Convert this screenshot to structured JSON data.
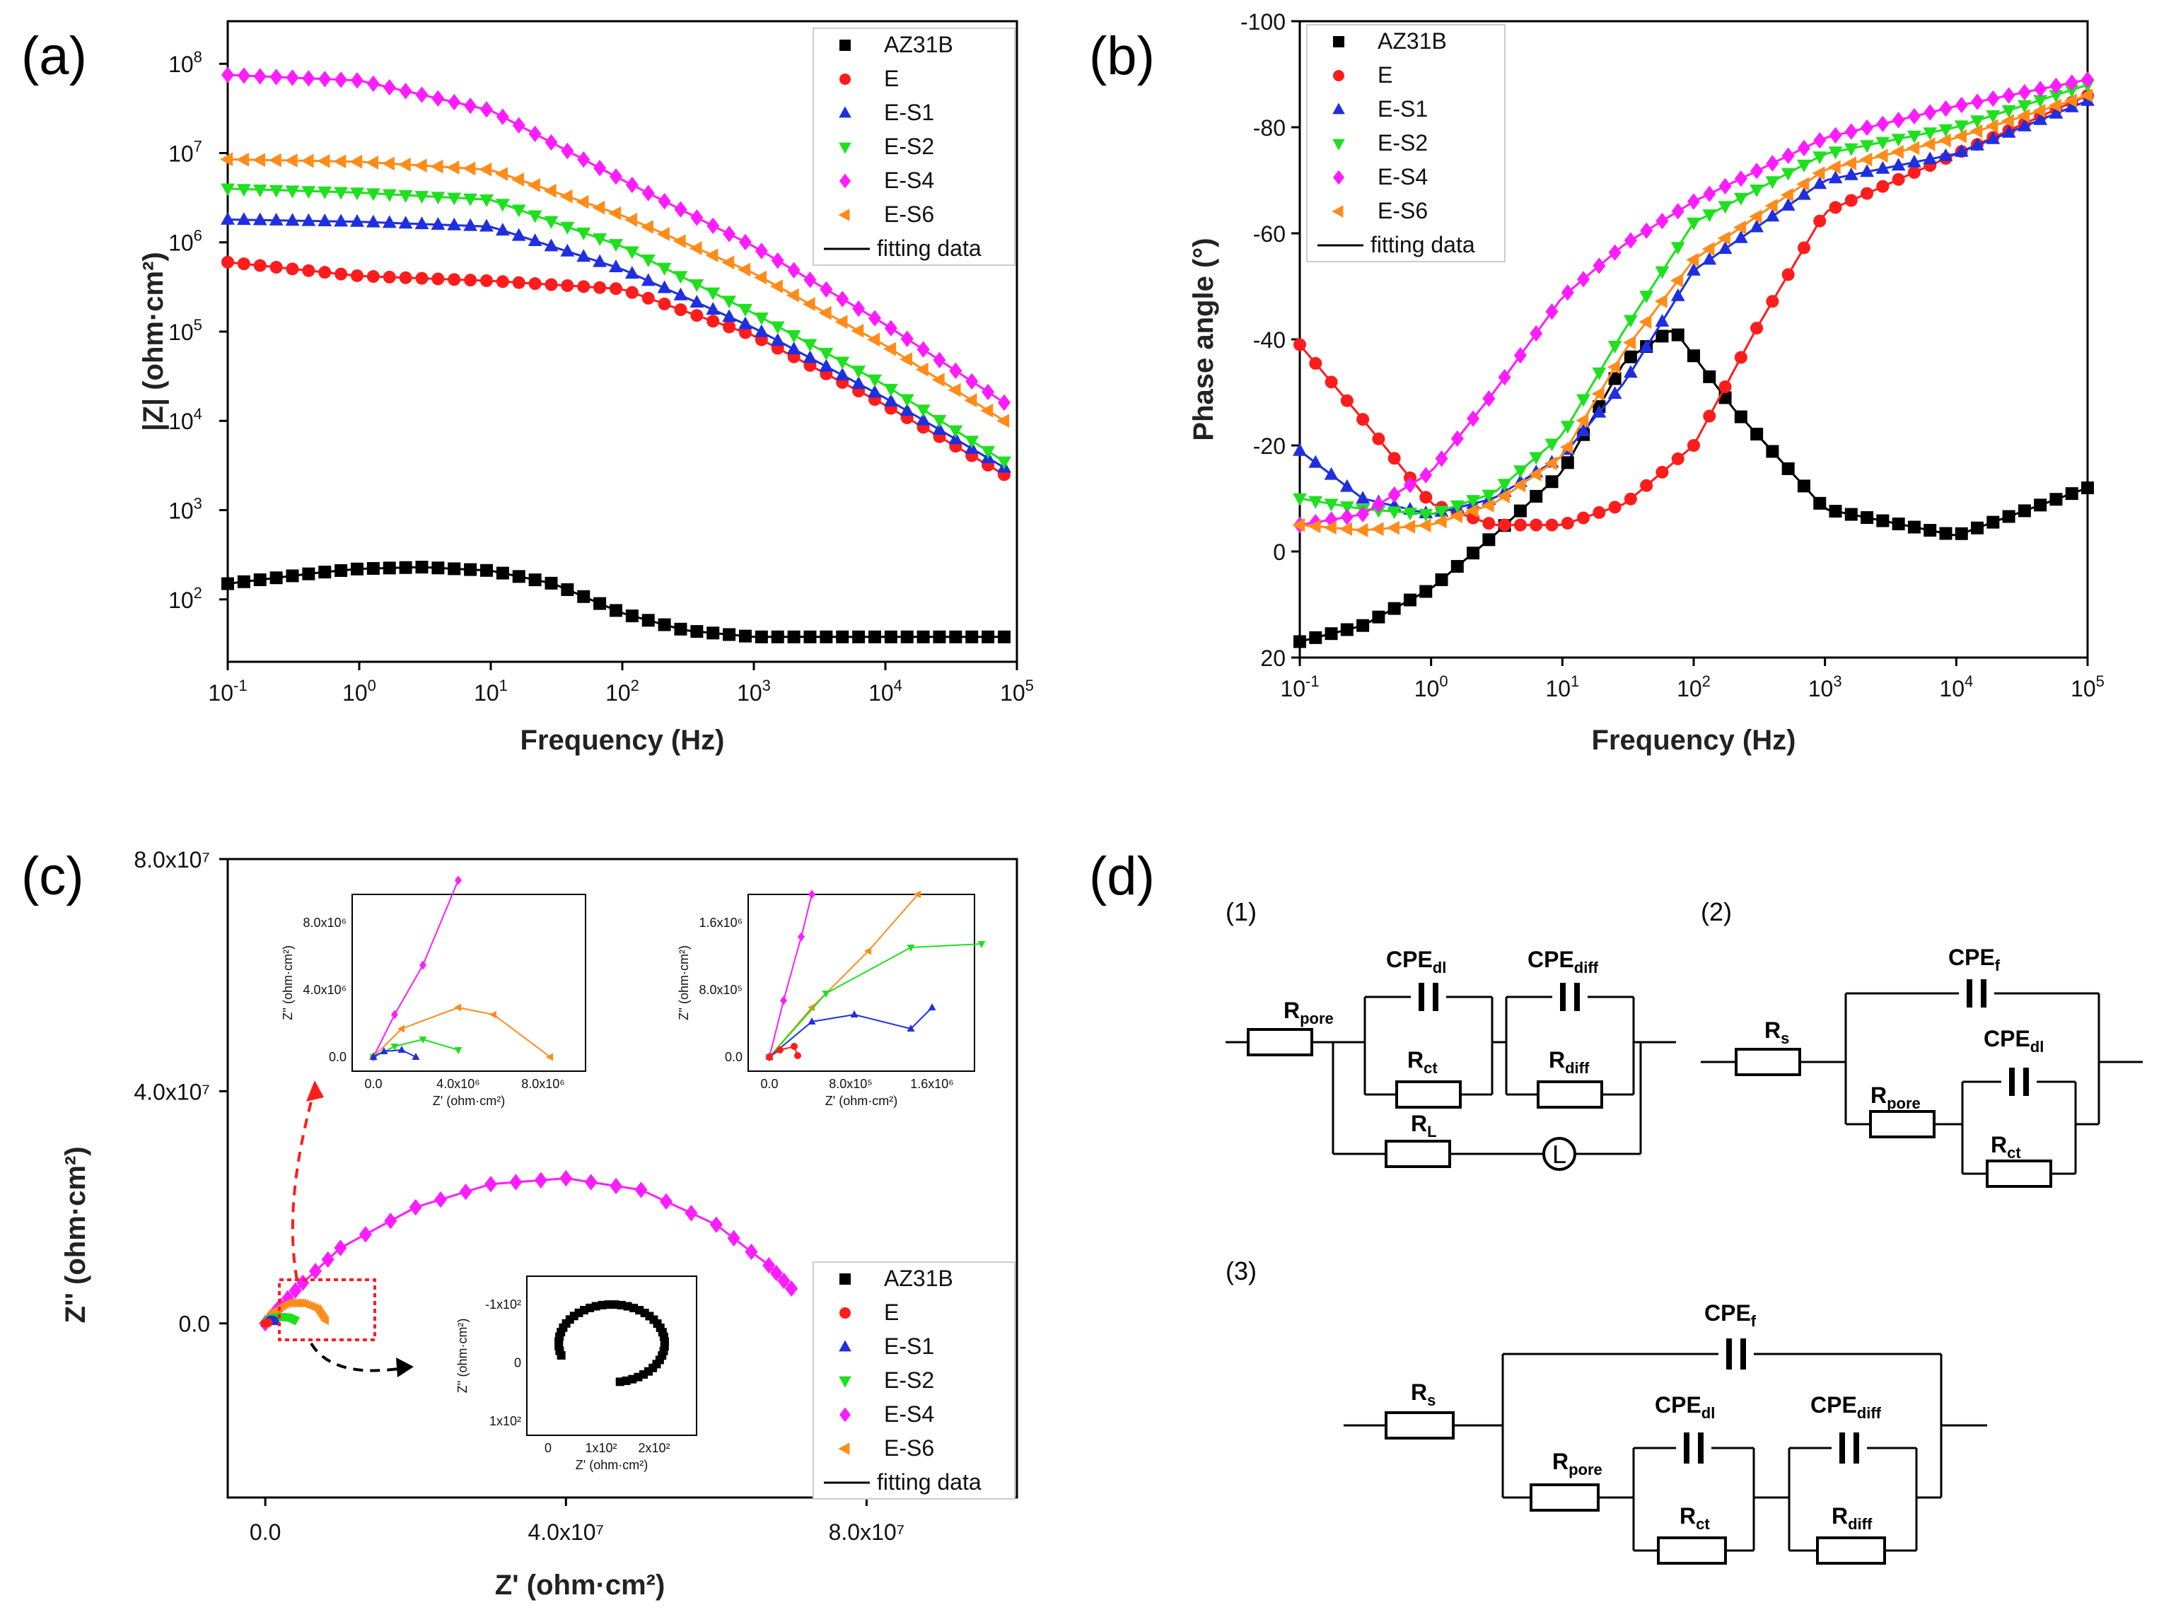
{
  "panels": {
    "a": "(a)",
    "b": "(b)",
    "c": "(c)",
    "d": "(d)"
  },
  "legend": {
    "entries": [
      "AZ31B",
      "E",
      "E-S1",
      "E-S2",
      "E-S4",
      "E-S6"
    ],
    "fit_label": "fitting data"
  },
  "colors": {
    "AZ31B": "#000000",
    "E": "#ff1c1c",
    "E-S1": "#1f2fe0",
    "E-S2": "#1fe01f",
    "E-S4": "#ff1cff",
    "E-S6": "#ff8c1a"
  },
  "markers": {
    "AZ31B": "square",
    "E": "circle",
    "E-S1": "triangle-up",
    "E-S2": "triangle-down",
    "E-S4": "diamond",
    "E-S6": "triangle-left"
  },
  "chart_data": [
    {
      "id": "a",
      "type": "line",
      "title": "",
      "xlabel": "Frequency (Hz)",
      "ylabel": "|Z| (ohm·cm²)",
      "xscale": "log",
      "yscale": "log",
      "xlim": [
        0.1,
        100000
      ],
      "ylim": [
        20,
        300000000
      ],
      "xticks": [
        0.1,
        1,
        10,
        100,
        1000,
        10000,
        100000
      ],
      "xtick_labels": [
        [
          "10",
          "-1"
        ],
        [
          "10",
          "0"
        ],
        [
          "10",
          "1"
        ],
        [
          "10",
          "2"
        ],
        [
          "10",
          "3"
        ],
        [
          "10",
          "4"
        ],
        [
          "10",
          "5"
        ]
      ],
      "yticks": [
        100,
        1000,
        10000,
        100000,
        1000000,
        10000000,
        100000000
      ],
      "ytick_labels": [
        [
          "10",
          "2"
        ],
        [
          "10",
          "3"
        ],
        [
          "10",
          "4"
        ],
        [
          "10",
          "5"
        ],
        [
          "10",
          "6"
        ],
        [
          "10",
          "7"
        ],
        [
          "10",
          "8"
        ]
      ],
      "legend_position": "top-right",
      "series": [
        {
          "name": "AZ31B",
          "x": [
            0.1,
            0.5,
            1,
            3,
            10,
            30,
            100,
            300,
            1000,
            10000,
            80000
          ],
          "y": [
            150,
            200,
            220,
            230,
            210,
            150,
            70,
            45,
            38,
            38,
            38
          ]
        },
        {
          "name": "E",
          "x": [
            0.1,
            1,
            10,
            100,
            1000,
            10000,
            80000
          ],
          "y": [
            600000,
            420000,
            370000,
            300000,
            90000,
            15000,
            2500
          ]
        },
        {
          "name": "E-S1",
          "x": [
            0.1,
            1,
            10,
            100,
            1000,
            10000,
            80000
          ],
          "y": [
            1800000,
            1700000,
            1500000,
            500000,
            110000,
            18000,
            3000
          ]
        },
        {
          "name": "E-S2",
          "x": [
            0.1,
            1,
            10,
            100,
            1000,
            10000,
            80000
          ],
          "y": [
            4000000,
            3600000,
            3000000,
            900000,
            160000,
            25000,
            3500
          ]
        },
        {
          "name": "E-S4",
          "x": [
            0.1,
            1,
            10,
            100,
            1000,
            10000,
            80000
          ],
          "y": [
            75000000,
            65000000,
            30000000,
            5000000,
            900000,
            120000,
            16000
          ]
        },
        {
          "name": "E-S6",
          "x": [
            0.1,
            1,
            10,
            100,
            1000,
            10000,
            80000
          ],
          "y": [
            8500000,
            8000000,
            6500000,
            2000000,
            450000,
            70000,
            10000
          ]
        }
      ]
    },
    {
      "id": "b",
      "type": "line",
      "title": "",
      "xlabel": "Frequency (Hz)",
      "ylabel": "Phase angle (°)",
      "xscale": "log",
      "xlim": [
        0.1,
        100000
      ],
      "ylim": [
        20,
        -100
      ],
      "xticks": [
        0.1,
        1,
        10,
        100,
        1000,
        10000,
        100000
      ],
      "xtick_labels": [
        [
          "10",
          "-1"
        ],
        [
          "10",
          "0"
        ],
        [
          "10",
          "1"
        ],
        [
          "10",
          "2"
        ],
        [
          "10",
          "3"
        ],
        [
          "10",
          "4"
        ],
        [
          "10",
          "5"
        ]
      ],
      "yticks": [
        -100,
        -80,
        -60,
        -40,
        -20,
        0,
        20
      ],
      "ytick_labels": [
        "-100",
        "-80",
        "-60",
        "-40",
        "-20",
        "0",
        "20"
      ],
      "legend_position": "top-left",
      "series": [
        {
          "name": "AZ31B",
          "x": [
            0.1,
            0.3,
            1,
            3,
            10,
            30,
            70,
            200,
            1000,
            10000,
            100000
          ],
          "y": [
            17,
            14,
            7,
            -3,
            -15,
            -36,
            -42,
            -27,
            -8,
            -3,
            -12
          ]
        },
        {
          "name": "E",
          "x": [
            0.1,
            0.3,
            1,
            3,
            10,
            30,
            100,
            300,
            1000,
            10000,
            100000
          ],
          "y": [
            -39,
            -25,
            -9,
            -5,
            -5,
            -9,
            -20,
            -42,
            -64,
            -75,
            -86
          ]
        },
        {
          "name": "E-S1",
          "x": [
            0.1,
            0.3,
            1,
            3,
            10,
            30,
            100,
            1000,
            10000,
            100000
          ],
          "y": [
            -19,
            -10,
            -7,
            -10,
            -18,
            -32,
            -53,
            -70,
            -75,
            -85
          ]
        },
        {
          "name": "E-S2",
          "x": [
            0.1,
            0.3,
            1,
            3,
            10,
            30,
            100,
            1000,
            10000,
            100000
          ],
          "y": [
            -10,
            -8,
            -7,
            -11,
            -22,
            -42,
            -62,
            -75,
            -80,
            -88
          ]
        },
        {
          "name": "E-S4",
          "x": [
            0.1,
            0.3,
            1,
            3,
            10,
            30,
            100,
            1000,
            10000,
            100000
          ],
          "y": [
            -5,
            -7,
            -15,
            -30,
            -48,
            -58,
            -66,
            -78,
            -84,
            -89
          ]
        },
        {
          "name": "E-S6",
          "x": [
            0.1,
            0.3,
            1,
            3,
            10,
            30,
            100,
            1000,
            10000,
            100000
          ],
          "y": [
            -5,
            -4,
            -5,
            -9,
            -18,
            -38,
            -55,
            -72,
            -78,
            -86
          ]
        }
      ]
    },
    {
      "id": "c",
      "type": "scatter",
      "title": "",
      "xlabel": "Z' (ohm·cm²)",
      "ylabel": "Z'' (ohm·cm²)",
      "xlim": [
        -5000000,
        100000000
      ],
      "ylim": [
        -30000000,
        80000000
      ],
      "xticks": [
        0,
        40000000,
        80000000
      ],
      "xtick_labels": [
        "0.0",
        "4.0x10⁷",
        "8.0x10⁷"
      ],
      "yticks": [
        0,
        40000000,
        80000000
      ],
      "ytick_labels": [
        "0.0",
        "4.0x10⁷",
        "8.0x10⁷"
      ],
      "legend_position": "bottom-right",
      "series": [
        {
          "name": "E-S4",
          "x": [
            0,
            2000000,
            5000000,
            10000000,
            20000000,
            30000000,
            40000000,
            50000000,
            60000000,
            67000000,
            70000000
          ],
          "y": [
            0,
            3000000,
            7000000,
            13000000,
            20000000,
            24000000,
            25000000,
            23000000,
            17000000,
            10000000,
            6000000
          ]
        },
        {
          "name": "E-S6",
          "x": [
            0,
            1000000,
            3000000,
            5000000,
            7000000,
            8000000
          ],
          "y": [
            0,
            2000000,
            3500000,
            3500000,
            2500000,
            500000
          ]
        },
        {
          "name": "E-S2",
          "x": [
            0,
            1000000,
            2000000,
            3000000,
            4000000
          ],
          "y": [
            0,
            1000000,
            1200000,
            1100000,
            500000
          ]
        },
        {
          "name": "E-S1",
          "x": [
            0,
            500000,
            1000000,
            1500000
          ],
          "y": [
            0,
            500000,
            500000,
            300000
          ]
        },
        {
          "name": "E",
          "x": [
            0,
            200000,
            400000
          ],
          "y": [
            0,
            100000,
            100000
          ]
        }
      ],
      "insets": [
        {
          "xlabel": "Z' (ohm·cm²)",
          "ylabel": "Z'' (ohm·cm²)",
          "xticks": [
            "0.0",
            "4.0x10⁶",
            "8.0x10⁶"
          ],
          "yticks": [
            "0.0",
            "4.0x10⁶",
            "8.0x10⁶"
          ],
          "series_names": [
            "E-S4",
            "E-S6",
            "E-S2",
            "E-S1"
          ]
        },
        {
          "xlabel": "Z' (ohm·cm²)",
          "ylabel": "Z'' (ohm·cm²)",
          "xticks": [
            "0.0",
            "8.0x10⁵",
            "1.6x10⁶"
          ],
          "yticks": [
            "0.0",
            "8.0x10⁵",
            "1.6x10⁶"
          ],
          "series_names": [
            "E-S4",
            "E-S6",
            "E-S2",
            "E-S1",
            "E"
          ]
        },
        {
          "xlabel": "Z' (ohm·cm²)",
          "ylabel": "Z'' (ohm·cm²)",
          "xticks": [
            "0",
            "1x10²",
            "2x10²"
          ],
          "yticks": [
            "1x10²",
            "0",
            "-1x10²"
          ],
          "series_names": [
            "AZ31B"
          ]
        }
      ]
    }
  ],
  "circuits": {
    "c1": {
      "number": "(1)",
      "labels": [
        [
          "R",
          "pore"
        ],
        [
          "CPE",
          "dl"
        ],
        [
          "CPE",
          "diff"
        ],
        [
          "R",
          "ct"
        ],
        [
          "R",
          "diff"
        ],
        [
          "R",
          "L"
        ],
        [
          "L",
          ""
        ]
      ]
    },
    "c2": {
      "number": "(2)",
      "labels": [
        [
          "R",
          "s"
        ],
        [
          "CPE",
          "f"
        ],
        [
          "CPE",
          "dl"
        ],
        [
          "R",
          "pore"
        ],
        [
          "R",
          "ct"
        ]
      ]
    },
    "c3": {
      "number": "(3)",
      "labels": [
        [
          "R",
          "s"
        ],
        [
          "CPE",
          "f"
        ],
        [
          "CPE",
          "dl"
        ],
        [
          "CPE",
          "diff"
        ],
        [
          "R",
          "pore"
        ],
        [
          "R",
          "ct"
        ],
        [
          "R",
          "diff"
        ]
      ]
    }
  }
}
